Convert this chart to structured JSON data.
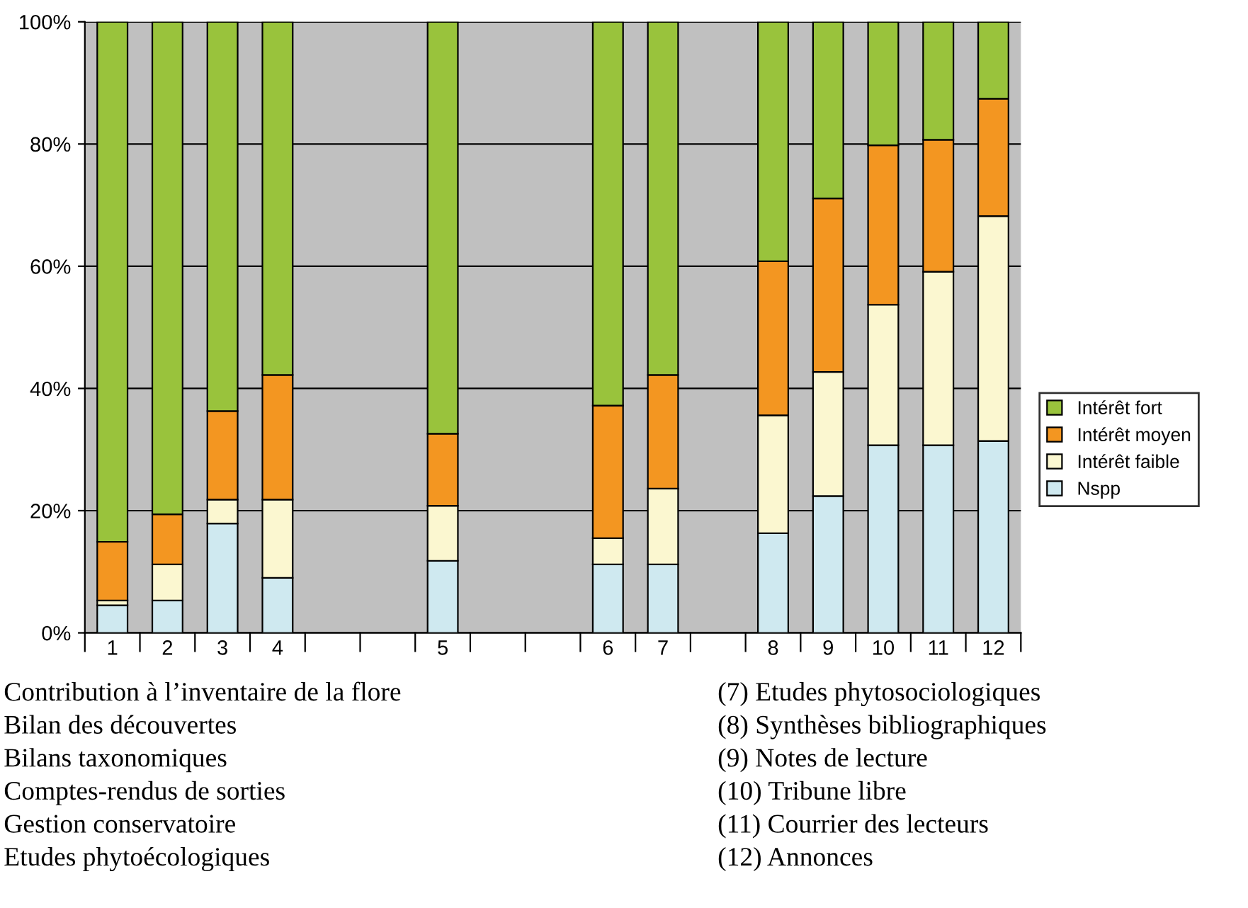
{
  "chart_data": {
    "type": "bar",
    "stacked": true,
    "categories": [
      "1",
      "2",
      "3",
      "4",
      null,
      null,
      "5",
      null,
      null,
      "6",
      "7",
      null,
      "8",
      "9",
      "10",
      "11",
      "12"
    ],
    "series": [
      {
        "name": "Nspp",
        "color": "#cfe9f0",
        "values": [
          4.5,
          5.3,
          17.9,
          9.0,
          null,
          null,
          11.8,
          null,
          null,
          11.2,
          11.2,
          null,
          16.3,
          22.4,
          30.7,
          30.7,
          31.4
        ]
      },
      {
        "name": "Intérêt faible",
        "color": "#fbf7d0",
        "values": [
          0.8,
          5.9,
          3.9,
          12.8,
          null,
          null,
          9.0,
          null,
          null,
          4.3,
          12.4,
          null,
          19.3,
          20.3,
          23.0,
          28.4,
          36.8
        ]
      },
      {
        "name": "Intérêt moyen",
        "color": "#f39621",
        "values": [
          9.6,
          8.2,
          14.5,
          20.4,
          null,
          null,
          11.8,
          null,
          null,
          21.7,
          18.6,
          null,
          25.2,
          28.4,
          26.1,
          21.6,
          19.2
        ]
      },
      {
        "name": "Intérêt fort",
        "color": "#99c33c",
        "values": [
          85.1,
          80.6,
          63.7,
          57.8,
          null,
          null,
          67.4,
          null,
          null,
          62.8,
          57.8,
          null,
          39.2,
          28.9,
          20.2,
          19.3,
          12.6
        ]
      }
    ],
    "ylim": [
      0,
      100
    ],
    "yticks": [
      {
        "value": 0,
        "label": "0%"
      },
      {
        "value": 20,
        "label": "20%"
      },
      {
        "value": 40,
        "label": "40%"
      },
      {
        "value": 60,
        "label": "60%"
      },
      {
        "value": 80,
        "label": "80%"
      },
      {
        "value": 100,
        "label": "100%"
      }
    ],
    "grid": "y",
    "legend": "right",
    "annotations": [
      "Contribution à l’inventaire de la flore",
      "Bilan des découvertes",
      "Bilans taxonomiques",
      "Comptes-rendus de sorties",
      "Gestion conservatoire",
      "Etudes phytoécologiques",
      "(7) Etudes phytosociologiques",
      "(8) Synthèses bibliographiques",
      "(9) Notes de lecture",
      "(10) Tribune libre",
      "(11) Courrier des lecteurs",
      "(12) Annonces"
    ]
  }
}
